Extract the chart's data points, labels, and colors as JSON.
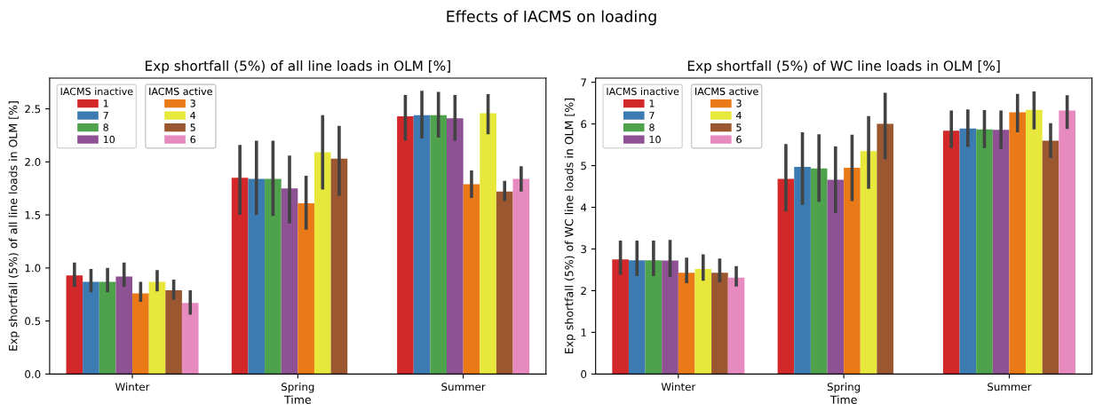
{
  "chart_data": [
    {
      "type": "bar",
      "title": "Exp shortfall (5%) of all line loads in OLM [%]",
      "xlabel": "Time",
      "ylabel": "Exp shortfall (5%) of all line loads in OLM [%]",
      "annotations": [
        "Effects of IACMS on loading"
      ],
      "categories": [
        "Winter",
        "Spring",
        "Summer"
      ],
      "ylim": [
        0,
        2.79
      ],
      "yticks": [
        {
          "value": 0,
          "label": "0.0"
        },
        0.5,
        {
          "value": 1,
          "label": "1.0"
        },
        1.5,
        {
          "value": 2,
          "label": "2.0"
        },
        2.5
      ],
      "grid": false,
      "legend": "top left",
      "legend_title": [
        "IACMS inactive",
        "IACMS active"
      ],
      "series": [
        {
          "name": "1",
          "color": "#d3282a",
          "values": [
            0.93,
            1.85,
            2.43
          ],
          "errors": [
            [
              0.82,
              1.05
            ],
            [
              1.5,
              2.16
            ],
            [
              2.2,
              2.63
            ]
          ]
        },
        {
          "name": "7",
          "color": "#3c7bb1",
          "values": [
            0.87,
            1.84,
            2.44
          ],
          "errors": [
            [
              0.77,
              0.99
            ],
            [
              1.5,
              2.2
            ],
            [
              2.22,
              2.67
            ]
          ]
        },
        {
          "name": "8",
          "color": "#4fa24c",
          "values": [
            0.87,
            1.84,
            2.44
          ],
          "errors": [
            [
              0.77,
              1.0
            ],
            [
              1.49,
              2.2
            ],
            [
              2.23,
              2.66
            ]
          ]
        },
        {
          "name": "10",
          "color": "#8e5194",
          "values": [
            0.92,
            1.75,
            2.41
          ],
          "errors": [
            [
              0.82,
              1.05
            ],
            [
              1.42,
              2.06
            ],
            [
              2.2,
              2.63
            ]
          ]
        },
        {
          "name": "3",
          "color": "#e97a17",
          "values": [
            0.76,
            1.61,
            1.79
          ],
          "errors": [
            [
              0.68,
              0.87
            ],
            [
              1.36,
              1.87
            ],
            [
              1.66,
              1.92
            ]
          ]
        },
        {
          "name": "4",
          "color": "#e8e83c",
          "values": [
            0.87,
            2.09,
            2.46
          ],
          "errors": [
            [
              0.78,
              0.98
            ],
            [
              1.74,
              2.44
            ],
            [
              2.26,
              2.64
            ]
          ]
        },
        {
          "name": "5",
          "color": "#9b5830",
          "values": [
            0.79,
            2.03,
            1.72
          ],
          "errors": [
            [
              0.7,
              0.89
            ],
            [
              1.68,
              2.34
            ],
            [
              1.63,
              1.82
            ]
          ]
        },
        {
          "name": "6",
          "color": "#e68ac0",
          "values": [
            0.67,
            null,
            1.84
          ],
          "errors": [
            [
              0.56,
              0.79
            ],
            null,
            [
              1.72,
              1.96
            ]
          ]
        }
      ]
    },
    {
      "type": "bar",
      "title": "Exp shortfall (5%) of WC line loads in OLM [%]",
      "xlabel": "Time",
      "ylabel": "Exp shortfall (5%) of WC line loads in OLM [%]",
      "categories": [
        "Winter",
        "Spring",
        "Summer"
      ],
      "ylim": [
        0,
        7.1
      ],
      "yticks": [
        0,
        1,
        2,
        3,
        4,
        5,
        6,
        7
      ],
      "grid": false,
      "legend": "top left",
      "legend_title": [
        "IACMS inactive",
        "IACMS active"
      ],
      "series": [
        {
          "name": "1",
          "color": "#d3282a",
          "values": [
            2.75,
            4.68,
            5.84
          ],
          "errors": [
            [
              2.38,
              3.2
            ],
            [
              3.9,
              5.52
            ],
            [
              5.42,
              6.32
            ]
          ]
        },
        {
          "name": "7",
          "color": "#3c7bb1",
          "values": [
            2.73,
            4.97,
            5.89
          ],
          "errors": [
            [
              2.35,
              3.2
            ],
            [
              4.06,
              5.8
            ],
            [
              5.45,
              6.35
            ]
          ]
        },
        {
          "name": "8",
          "color": "#4fa24c",
          "values": [
            2.73,
            4.93,
            5.87
          ],
          "errors": [
            [
              2.35,
              3.2
            ],
            [
              4.13,
              5.75
            ],
            [
              5.42,
              6.33
            ]
          ]
        },
        {
          "name": "10",
          "color": "#8e5194",
          "values": [
            2.72,
            4.66,
            5.86
          ],
          "errors": [
            [
              2.33,
              3.22
            ],
            [
              3.86,
              5.46
            ],
            [
              5.4,
              6.32
            ]
          ]
        },
        {
          "name": "3",
          "color": "#e97a17",
          "values": [
            2.43,
            4.95,
            6.28
          ],
          "errors": [
            [
              2.18,
              2.79
            ],
            [
              4.15,
              5.74
            ],
            [
              5.8,
              6.72
            ]
          ]
        },
        {
          "name": "4",
          "color": "#e8e83c",
          "values": [
            2.52,
            5.35,
            6.34
          ],
          "errors": [
            [
              2.24,
              2.87
            ],
            [
              4.44,
              6.19
            ],
            [
              5.87,
              6.78
            ]
          ]
        },
        {
          "name": "5",
          "color": "#9b5830",
          "values": [
            2.43,
            6.0,
            5.6
          ],
          "errors": [
            [
              2.2,
              2.77
            ],
            [
              5.15,
              6.75
            ],
            [
              5.18,
              6.02
            ]
          ]
        },
        {
          "name": "6",
          "color": "#e68ac0",
          "values": [
            2.31,
            null,
            6.32
          ],
          "errors": [
            [
              2.1,
              2.59
            ],
            null,
            [
              5.88,
              6.69
            ]
          ]
        }
      ]
    }
  ]
}
